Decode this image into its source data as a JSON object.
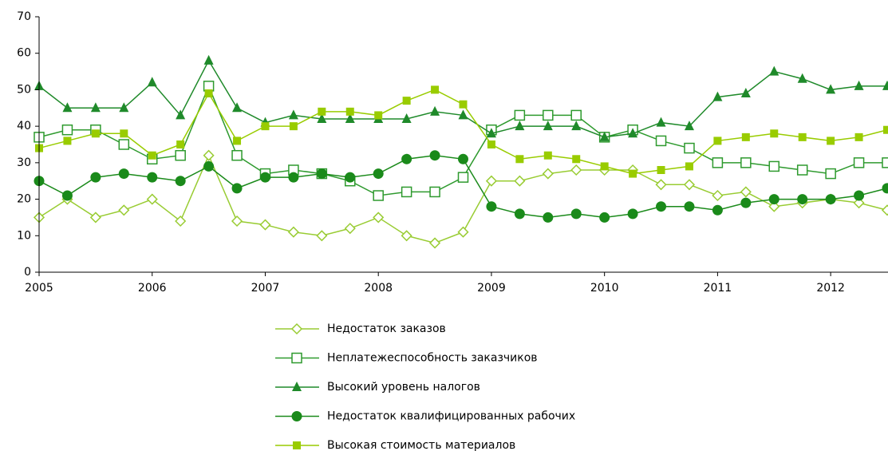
{
  "chart_data": {
    "type": "line",
    "x": [
      2005,
      2005.25,
      2005.5,
      2005.75,
      2006,
      2006.25,
      2006.5,
      2006.75,
      2007,
      2007.25,
      2007.5,
      2007.75,
      2008,
      2008.25,
      2008.5,
      2008.75,
      2009,
      2009.25,
      2009.5,
      2009.75,
      2010,
      2010.25,
      2010.5,
      2010.75,
      2011,
      2011.25,
      2011.5,
      2011.75,
      2012,
      2012.25,
      2012.5
    ],
    "xlim": [
      2005,
      2012.5
    ],
    "xticks": [
      2005,
      2006,
      2007,
      2008,
      2009,
      2010,
      2011,
      2012
    ],
    "ylim": [
      0,
      70
    ],
    "yticks": [
      0,
      10,
      20,
      30,
      40,
      50,
      60,
      70
    ],
    "series": [
      {
        "name": "Недостаток заказов",
        "color": "#99cc33",
        "marker": "diamond-open",
        "values": [
          15,
          20,
          15,
          17,
          20,
          14,
          32,
          14,
          13,
          11,
          10,
          12,
          15,
          10,
          8,
          11,
          25,
          25,
          27,
          28,
          28,
          28,
          24,
          24,
          21,
          22,
          18,
          19,
          20,
          19,
          17
        ]
      },
      {
        "name": "Неплатежеспособность заказчиков",
        "color": "#2e9a2e",
        "marker": "square-open",
        "values": [
          37,
          39,
          39,
          35,
          31,
          32,
          51,
          32,
          27,
          28,
          27,
          25,
          21,
          22,
          22,
          26,
          39,
          43,
          43,
          43,
          37,
          39,
          36,
          34,
          30,
          30,
          29,
          28,
          27,
          30,
          30
        ]
      },
      {
        "name": "Высокий уровень налогов",
        "color": "#1f8a2a",
        "marker": "triangle",
        "values": [
          51,
          45,
          45,
          45,
          52,
          43,
          58,
          45,
          41,
          43,
          42,
          42,
          42,
          42,
          44,
          43,
          38,
          40,
          40,
          40,
          37,
          38,
          41,
          40,
          48,
          49,
          55,
          53,
          50,
          51,
          51
        ]
      },
      {
        "name": "Недостаток квалифицированных рабочих",
        "color": "#1a8a1a",
        "marker": "circle",
        "values": [
          25,
          21,
          26,
          27,
          26,
          25,
          29,
          23,
          26,
          26,
          27,
          26,
          27,
          31,
          32,
          31,
          18,
          16,
          15,
          16,
          15,
          16,
          18,
          18,
          17,
          19,
          20,
          20,
          20,
          21,
          23
        ]
      },
      {
        "name": "Высокая стоимость материалов",
        "color": "#99cc00",
        "marker": "square",
        "values": [
          34,
          36,
          38,
          38,
          32,
          35,
          49,
          36,
          40,
          40,
          44,
          44,
          43,
          47,
          50,
          46,
          35,
          31,
          32,
          31,
          29,
          27,
          28,
          29,
          36,
          37,
          38,
          37,
          36,
          37,
          39
        ]
      }
    ]
  }
}
